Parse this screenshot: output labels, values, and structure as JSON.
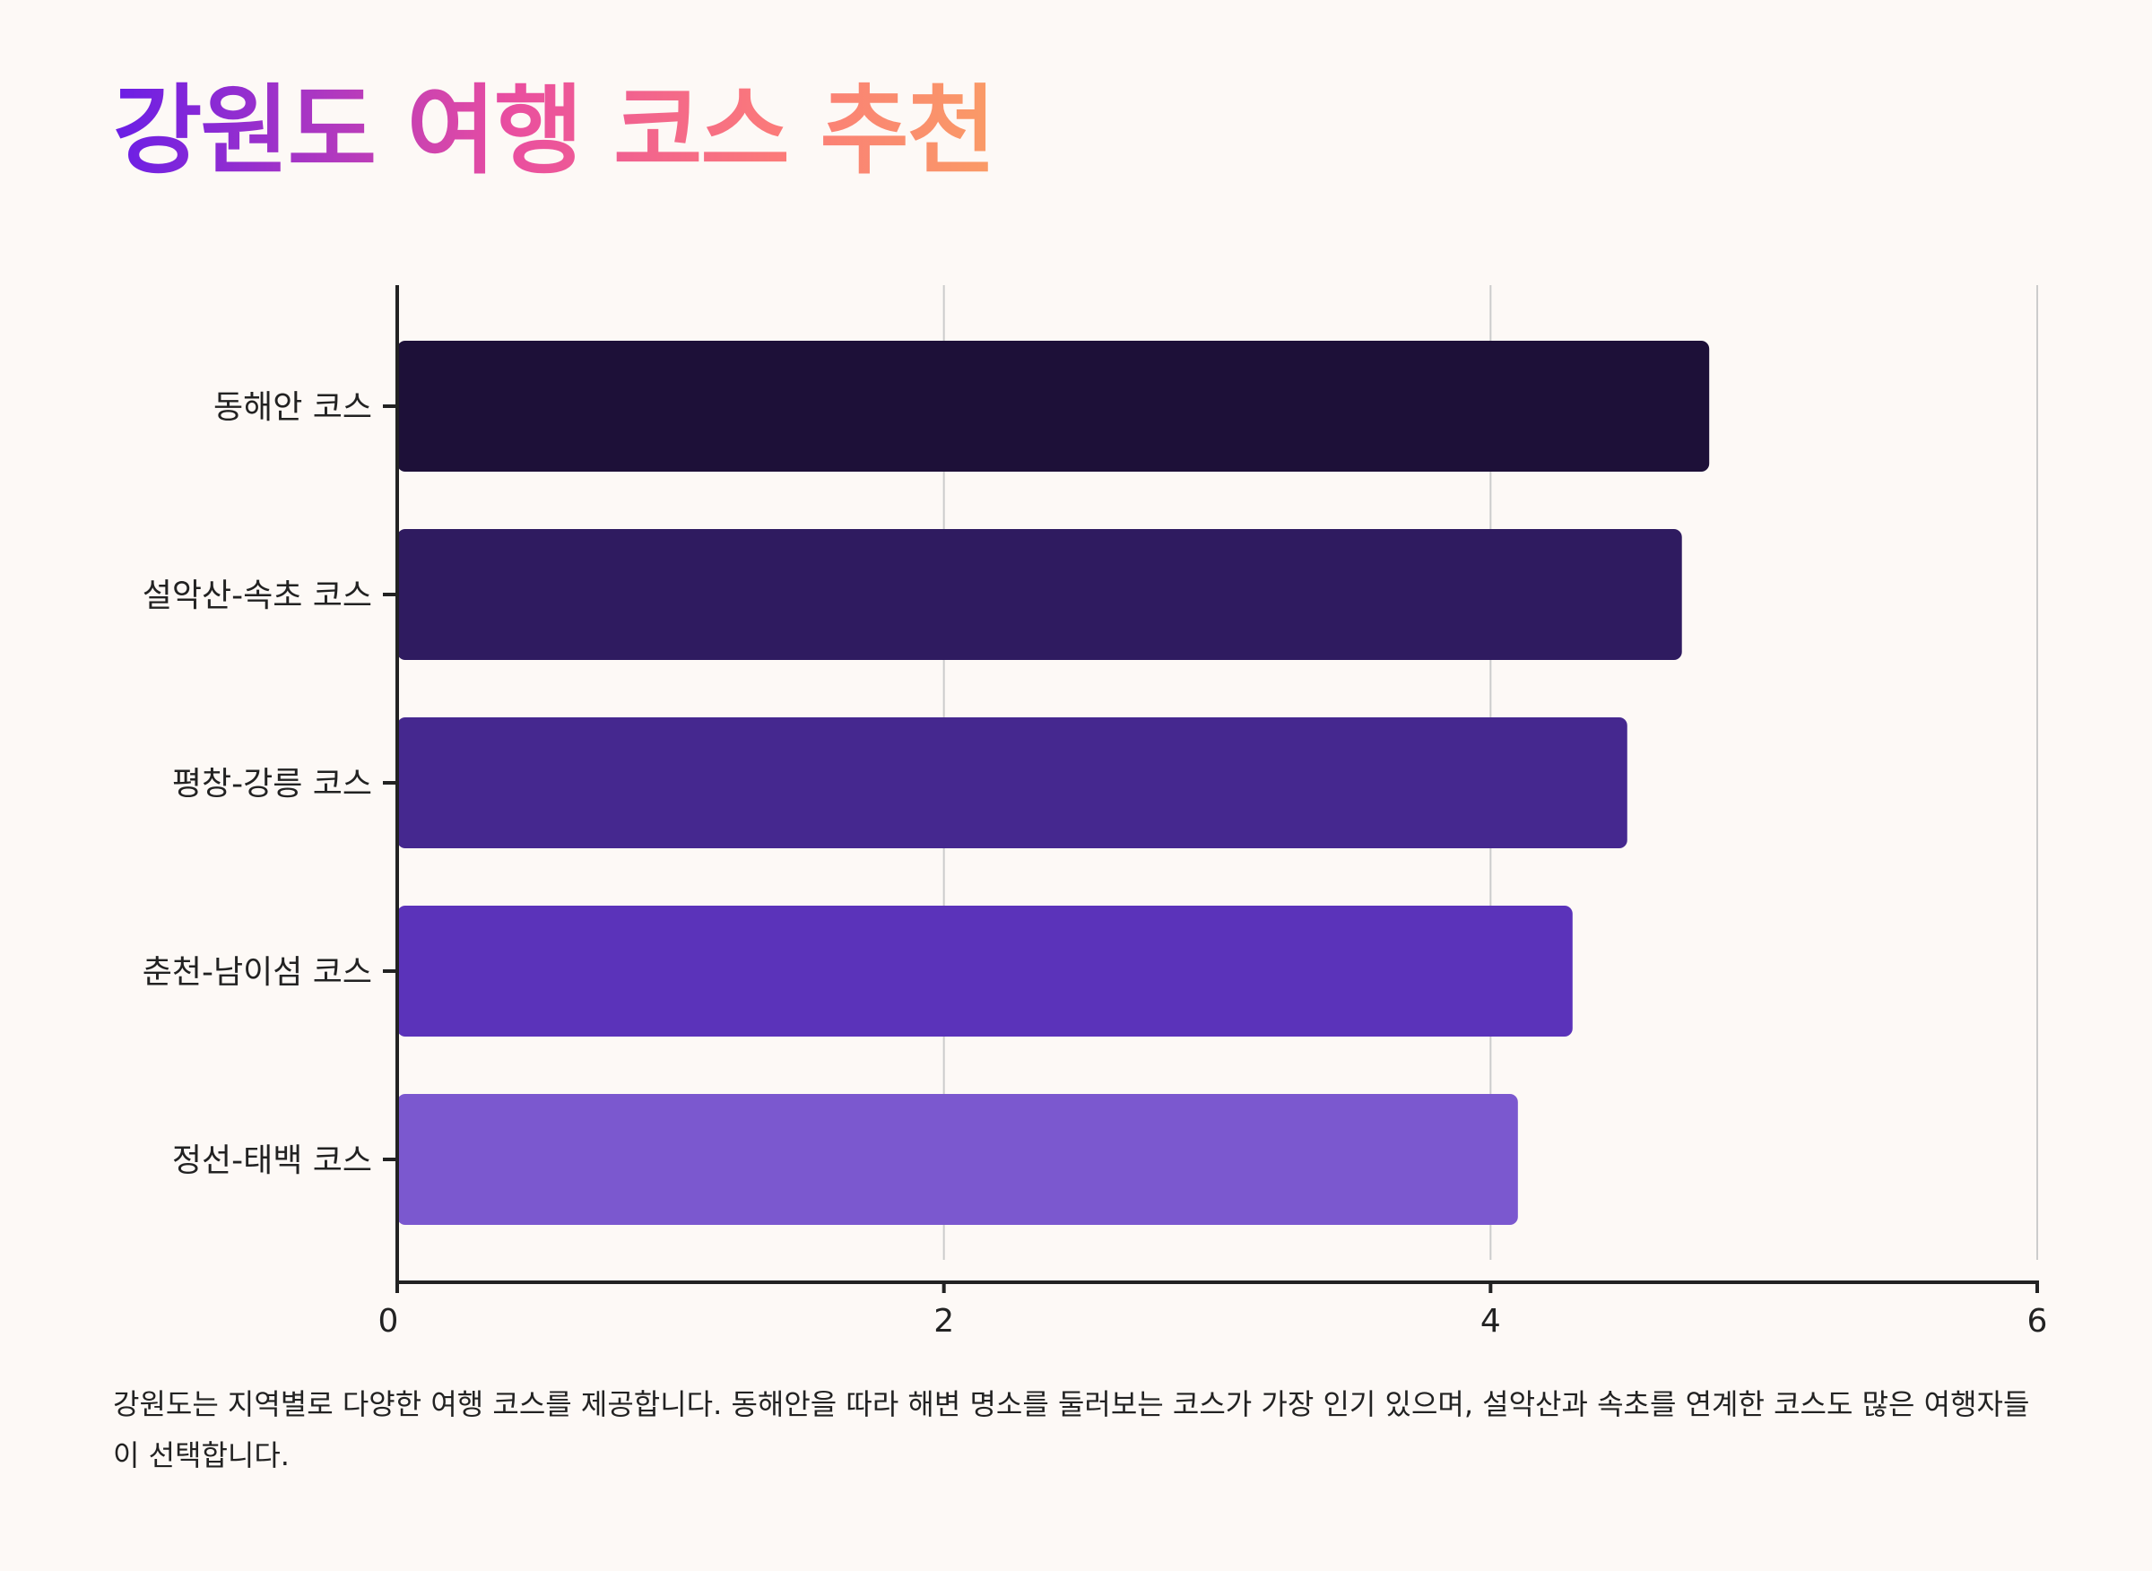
{
  "page": {
    "title": "강원도 여행 코스 추천",
    "description": "강원도는 지역별로 다양한 여행 코스를 제공합니다. 동해안을 따라 해변 명소를 둘러보는 코스가 가장 인기 있으며, 설악산과 속초를 연계한 코스도 많은 여행자들이 선택합니다."
  },
  "colors": {
    "bars": [
      "#1d1038",
      "#2f1b60",
      "#45288f",
      "#5b33ba",
      "#7b58cf"
    ],
    "axis": "#222222",
    "grid": "#cccccc",
    "text": "#222222"
  },
  "chart_data": {
    "type": "bar",
    "orientation": "horizontal",
    "categories": [
      "동해안 코스",
      "설악산-속초 코스",
      "평창-강릉 코스",
      "춘천-남이섬 코스",
      "정선-태백 코스"
    ],
    "values": [
      4.8,
      4.7,
      4.5,
      4.3,
      4.1
    ],
    "xlim": [
      0,
      6
    ],
    "xticks": [
      0,
      2,
      4,
      6
    ],
    "grid": "vertical",
    "legend": "none",
    "title": "강원도 여행 코스 추천",
    "xlabel": "",
    "ylabel": ""
  }
}
